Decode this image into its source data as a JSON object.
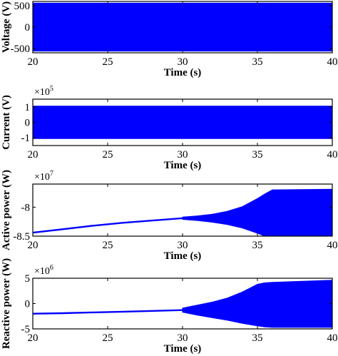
{
  "chart_data": [
    {
      "type": "line",
      "xlabel": "Time (s)",
      "ylabel": "Voltage (V)",
      "multiplier": "",
      "xlim": [
        20,
        40
      ],
      "ylim": [
        -600,
        600
      ],
      "xticks": [
        "20",
        "25",
        "30",
        "35",
        "40"
      ],
      "yticks": [
        {
          "value": 500,
          "label": "500"
        },
        {
          "value": 0,
          "label": "0"
        },
        {
          "value": -500,
          "label": "-500"
        }
      ],
      "color": "#0000ff",
      "envelope": {
        "x": [
          20,
          25,
          30,
          35,
          40
        ],
        "upper": [
          560,
          560,
          560,
          560,
          560
        ],
        "lower": [
          -560,
          -560,
          -560,
          -560,
          -560
        ]
      }
    },
    {
      "type": "line",
      "xlabel": "Time (s)",
      "ylabel": "Current (V)",
      "multiplier": {
        "base": "×10",
        "exp": "5"
      },
      "xlim": [
        20,
        40
      ],
      "ylim": [
        -1.5,
        1.5
      ],
      "xticks": [
        "20",
        "25",
        "30",
        "35",
        "40"
      ],
      "yticks": [
        {
          "value": 1,
          "label": "1"
        },
        {
          "value": 0,
          "label": "0"
        },
        {
          "value": -1,
          "label": "-1"
        }
      ],
      "color": "#0000ff",
      "envelope": {
        "x": [
          20,
          25,
          30,
          35,
          40
        ],
        "upper": [
          1.05,
          1.05,
          1.05,
          1.05,
          1.05
        ],
        "lower": [
          -1.05,
          -1.05,
          -1.05,
          -1.05,
          -1.05
        ]
      }
    },
    {
      "type": "line",
      "xlabel": "Time (s)",
      "ylabel": "Active power (W)",
      "multiplier": {
        "base": "×10",
        "exp": "7"
      },
      "xlim": [
        20,
        40
      ],
      "ylim": [
        -8.5,
        -7.6
      ],
      "xticks": [
        "20",
        "25",
        "30",
        "35",
        "40"
      ],
      "yticks": [
        {
          "value": -8,
          "label": "-8"
        },
        {
          "value": -8.5,
          "label": "-8.5"
        }
      ],
      "color": "#0000ff",
      "trend": {
        "x": [
          20,
          22,
          24,
          26,
          28,
          30
        ],
        "y": [
          -8.44,
          -8.38,
          -8.32,
          -8.27,
          -8.23,
          -8.19
        ]
      },
      "envelope": {
        "x": [
          30,
          31,
          32,
          33,
          34,
          35,
          35.5,
          36,
          40
        ],
        "upper": [
          -8.17,
          -8.15,
          -8.12,
          -8.07,
          -7.99,
          -7.85,
          -7.77,
          -7.7,
          -7.69
        ],
        "lower": [
          -8.21,
          -8.23,
          -8.26,
          -8.3,
          -8.36,
          -8.45,
          -8.5,
          -8.5,
          -8.5
        ]
      }
    },
    {
      "type": "line",
      "xlabel": "Time (s)",
      "ylabel": "Reactive power (W)",
      "multiplier": {
        "base": "×10",
        "exp": "6"
      },
      "xlim": [
        20,
        40
      ],
      "ylim": [
        -5,
        5
      ],
      "xticks": [
        "20",
        "25",
        "30",
        "35",
        "40"
      ],
      "yticks": [
        {
          "value": 5,
          "label": "5"
        },
        {
          "value": 0,
          "label": "0"
        },
        {
          "value": -5,
          "label": "-5"
        }
      ],
      "color": "#0000ff",
      "trend": {
        "x": [
          20,
          22,
          24,
          26,
          28,
          30
        ],
        "y": [
          -2.0,
          -1.9,
          -1.75,
          -1.6,
          -1.45,
          -1.3
        ]
      },
      "envelope": {
        "x": [
          30,
          31,
          32,
          33,
          34,
          35,
          35.5,
          36,
          40
        ],
        "upper": [
          -0.9,
          -0.3,
          0.3,
          1.1,
          2.3,
          3.8,
          4.1,
          4.2,
          4.6
        ],
        "lower": [
          -1.7,
          -2.3,
          -2.8,
          -3.3,
          -3.9,
          -4.4,
          -4.6,
          -4.7,
          -4.7
        ]
      }
    }
  ]
}
